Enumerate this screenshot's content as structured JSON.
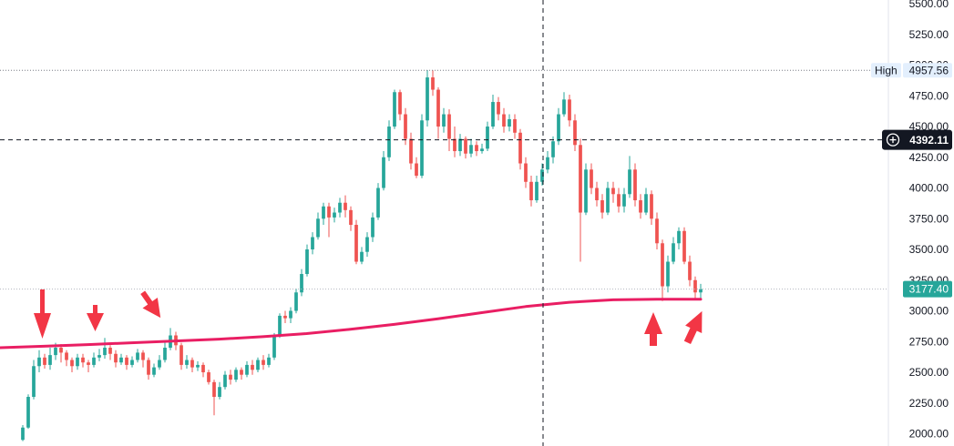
{
  "chart_data": {
    "type": "candlestick",
    "y_axis": {
      "ticks": [
        "5500.00",
        "5250.00",
        "5000.00",
        "4750.00",
        "4500.00",
        "4250.00",
        "4000.00",
        "3750.00",
        "3500.00",
        "3250.00",
        "3000.00",
        "2750.00",
        "2500.00",
        "2250.00",
        "2000.00"
      ],
      "tick_values": [
        5500,
        5250,
        5000,
        4750,
        4500,
        4250,
        4000,
        3750,
        3500,
        3250,
        3000,
        2750,
        2500,
        2250,
        2000
      ],
      "ylim": [
        1900,
        5530
      ]
    },
    "high_marker": {
      "label": "High",
      "value": "4957.56",
      "y": 4957.56
    },
    "crosshair": {
      "price_label": "4392.11",
      "y": 4392.11
    },
    "last_price": {
      "label": "3177.40",
      "y": 3177.4
    },
    "colors": {
      "up": "#26a69a",
      "down": "#ef5350",
      "moving_average": "#e91e63",
      "arrow": "#f23645",
      "crosshair_label_bg": "#131722",
      "last_price_bg": "#26a69a",
      "high_label_bg": "#e3effd"
    },
    "moving_average": {
      "values": [
        2700,
        2712,
        2725,
        2740,
        2755,
        2770,
        2790,
        2815,
        2850,
        2890,
        2935,
        2985,
        3035,
        3070,
        3090,
        3095,
        3095
      ]
    },
    "candles": [
      [
        1950,
        2050,
        1940,
        2070
      ],
      [
        2050,
        2300,
        2040,
        2320
      ],
      [
        2300,
        2550,
        2280,
        2600
      ],
      [
        2550,
        2620,
        2500,
        2680
      ],
      [
        2620,
        2560,
        2530,
        2650
      ],
      [
        2560,
        2640,
        2520,
        2700
      ],
      [
        2640,
        2700,
        2600,
        2740
      ],
      [
        2700,
        2660,
        2580,
        2730
      ],
      [
        2660,
        2600,
        2550,
        2680
      ],
      [
        2600,
        2550,
        2500,
        2620
      ],
      [
        2550,
        2620,
        2520,
        2650
      ],
      [
        2620,
        2580,
        2540,
        2650
      ],
      [
        2580,
        2560,
        2500,
        2600
      ],
      [
        2560,
        2620,
        2540,
        2660
      ],
      [
        2620,
        2640,
        2590,
        2690
      ],
      [
        2640,
        2700,
        2610,
        2780
      ],
      [
        2700,
        2650,
        2600,
        2720
      ],
      [
        2650,
        2580,
        2540,
        2680
      ],
      [
        2580,
        2620,
        2560,
        2650
      ],
      [
        2620,
        2560,
        2520,
        2640
      ],
      [
        2560,
        2600,
        2540,
        2630
      ],
      [
        2600,
        2660,
        2580,
        2690
      ],
      [
        2660,
        2600,
        2540,
        2680
      ],
      [
        2600,
        2480,
        2440,
        2620
      ],
      [
        2480,
        2540,
        2460,
        2570
      ],
      [
        2540,
        2600,
        2520,
        2640
      ],
      [
        2600,
        2700,
        2580,
        2760
      ],
      [
        2700,
        2800,
        2680,
        2860
      ],
      [
        2800,
        2720,
        2680,
        2830
      ],
      [
        2720,
        2560,
        2520,
        2740
      ],
      [
        2560,
        2600,
        2530,
        2640
      ],
      [
        2600,
        2540,
        2500,
        2620
      ],
      [
        2540,
        2560,
        2510,
        2590
      ],
      [
        2560,
        2500,
        2460,
        2580
      ],
      [
        2500,
        2420,
        2400,
        2520
      ],
      [
        2420,
        2300,
        2150,
        2440
      ],
      [
        2300,
        2380,
        2280,
        2420
      ],
      [
        2380,
        2480,
        2360,
        2510
      ],
      [
        2480,
        2440,
        2400,
        2520
      ],
      [
        2440,
        2520,
        2420,
        2540
      ],
      [
        2520,
        2480,
        2440,
        2540
      ],
      [
        2480,
        2560,
        2460,
        2590
      ],
      [
        2560,
        2520,
        2480,
        2600
      ],
      [
        2520,
        2600,
        2500,
        2620
      ],
      [
        2600,
        2560,
        2520,
        2640
      ],
      [
        2560,
        2620,
        2540,
        2650
      ],
      [
        2620,
        2800,
        2600,
        2820
      ],
      [
        2800,
        2960,
        2780,
        2980
      ],
      [
        2960,
        2940,
        2900,
        3000
      ],
      [
        2940,
        3000,
        2900,
        3030
      ],
      [
        3000,
        3150,
        2980,
        3180
      ],
      [
        3150,
        3300,
        3120,
        3340
      ],
      [
        3300,
        3500,
        3280,
        3540
      ],
      [
        3500,
        3600,
        3460,
        3640
      ],
      [
        3600,
        3750,
        3580,
        3800
      ],
      [
        3750,
        3850,
        3700,
        3880
      ],
      [
        3850,
        3760,
        3600,
        3880
      ],
      [
        3760,
        3800,
        3720,
        3840
      ],
      [
        3800,
        3880,
        3760,
        3920
      ],
      [
        3880,
        3820,
        3760,
        3940
      ],
      [
        3820,
        3700,
        3650,
        3850
      ],
      [
        3700,
        3400,
        3380,
        3740
      ],
      [
        3400,
        3480,
        3380,
        3520
      ],
      [
        3480,
        3600,
        3440,
        3640
      ],
      [
        3600,
        3760,
        3560,
        3800
      ],
      [
        3760,
        4000,
        3740,
        4040
      ],
      [
        4000,
        4250,
        3980,
        4300
      ],
      [
        4250,
        4500,
        4220,
        4550
      ],
      [
        4500,
        4780,
        4480,
        4800
      ],
      [
        4780,
        4600,
        4550,
        4800
      ],
      [
        4600,
        4400,
        4350,
        4650
      ],
      [
        4400,
        4200,
        4150,
        4450
      ],
      [
        4200,
        4100,
        4080,
        4250
      ],
      [
        4100,
        4550,
        4080,
        4600
      ],
      [
        4550,
        4900,
        4500,
        4960
      ],
      [
        4900,
        4800,
        4750,
        4958
      ],
      [
        4800,
        4500,
        4400,
        4820
      ],
      [
        4500,
        4600,
        4450,
        4650
      ],
      [
        4600,
        4400,
        4300,
        4640
      ],
      [
        4400,
        4300,
        4250,
        4500
      ],
      [
        4300,
        4400,
        4260,
        4440
      ],
      [
        4400,
        4280,
        4240,
        4420
      ],
      [
        4280,
        4350,
        4250,
        4400
      ],
      [
        4350,
        4300,
        4260,
        4380
      ],
      [
        4300,
        4320,
        4280,
        4360
      ],
      [
        4320,
        4500,
        4300,
        4540
      ],
      [
        4500,
        4700,
        4480,
        4760
      ],
      [
        4700,
        4600,
        4550,
        4740
      ],
      [
        4600,
        4500,
        4450,
        4650
      ],
      [
        4500,
        4560,
        4460,
        4600
      ],
      [
        4560,
        4450,
        4400,
        4600
      ],
      [
        4450,
        4200,
        4150,
        4480
      ],
      [
        4200,
        4050,
        4000,
        4250
      ],
      [
        4050,
        3900,
        3850,
        4100
      ],
      [
        3900,
        4050,
        3880,
        4100
      ],
      [
        4050,
        4150,
        4020,
        4200
      ],
      [
        4150,
        4250,
        4120,
        4300
      ],
      [
        4250,
        4380,
        4200,
        4420
      ],
      [
        4380,
        4600,
        4350,
        4650
      ],
      [
        4600,
        4720,
        4580,
        4780
      ],
      [
        4720,
        4550,
        4500,
        4760
      ],
      [
        4550,
        4350,
        4300,
        4600
      ],
      [
        4350,
        3800,
        3400,
        4400
      ],
      [
        3800,
        4150,
        3780,
        4200
      ],
      [
        4150,
        4000,
        3950,
        4200
      ],
      [
        4000,
        3900,
        3850,
        4050
      ],
      [
        3900,
        3800,
        3750,
        3950
      ],
      [
        3800,
        4000,
        3780,
        4050
      ],
      [
        4000,
        3950,
        3880,
        4050
      ],
      [
        3950,
        3850,
        3800,
        4000
      ],
      [
        3850,
        3950,
        3800,
        4000
      ],
      [
        3950,
        4150,
        3920,
        4260
      ],
      [
        4150,
        3900,
        3850,
        4200
      ],
      [
        3900,
        3800,
        3750,
        3950
      ],
      [
        3800,
        3950,
        3780,
        4000
      ],
      [
        3950,
        3750,
        3700,
        3980
      ],
      [
        3750,
        3550,
        3500,
        3800
      ],
      [
        3550,
        3200,
        3080,
        3580
      ],
      [
        3200,
        3400,
        3150,
        3450
      ],
      [
        3400,
        3550,
        3380,
        3600
      ],
      [
        3550,
        3650,
        3500,
        3680
      ],
      [
        3650,
        3400,
        3380,
        3680
      ],
      [
        3400,
        3250,
        3200,
        3450
      ],
      [
        3250,
        3150,
        3100,
        3280
      ],
      [
        3150,
        3177,
        3100,
        3220
      ]
    ]
  }
}
